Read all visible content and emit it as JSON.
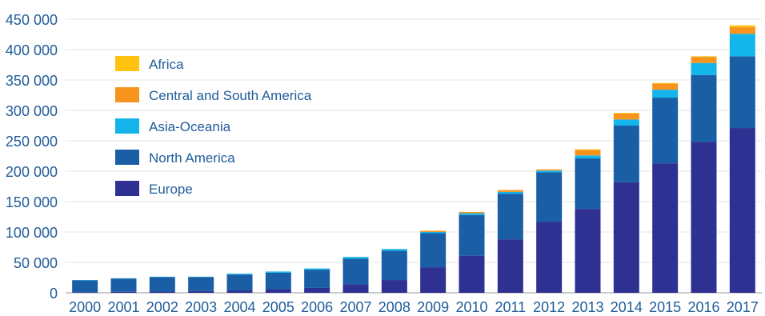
{
  "chart_data": {
    "type": "bar",
    "stacked": true,
    "categories": [
      "2000",
      "2001",
      "2002",
      "2003",
      "2004",
      "2005",
      "2006",
      "2007",
      "2008",
      "2009",
      "2010",
      "2011",
      "2012",
      "2013",
      "2014",
      "2015",
      "2016",
      "2017"
    ],
    "series": [
      {
        "name": "Europe",
        "color": "#2e3192",
        "values": [
          1000,
          1500,
          2000,
          3000,
          4000,
          6000,
          8000,
          14000,
          21000,
          42000,
          61000,
          88000,
          117000,
          138000,
          182000,
          213000,
          248000,
          271000
        ]
      },
      {
        "name": "North America",
        "color": "#1a5fa6",
        "values": [
          19500,
          22000,
          24000,
          23000,
          26000,
          27000,
          30000,
          42000,
          48000,
          56000,
          67000,
          75000,
          81000,
          83000,
          93000,
          108000,
          110000,
          118000
        ]
      },
      {
        "name": "Asia-Oceania",
        "color": "#13b5ea",
        "values": [
          500,
          500,
          500,
          500,
          1500,
          2000,
          2000,
          3000,
          3000,
          2000,
          3000,
          3000,
          3000,
          5000,
          10000,
          13000,
          20000,
          37000
        ]
      },
      {
        "name": "Central and South America",
        "color": "#f7941d",
        "values": [
          0,
          0,
          0,
          0,
          0,
          0,
          0,
          0,
          0,
          2000,
          2000,
          3000,
          2000,
          9000,
          10000,
          10000,
          10000,
          11000
        ]
      },
      {
        "name": "Africa",
        "color": "#ffc20e",
        "values": [
          0,
          0,
          0,
          0,
          0,
          0,
          0,
          0,
          0,
          0,
          0,
          0,
          0,
          1000,
          1000,
          1000,
          1000,
          3000
        ]
      }
    ],
    "legend_order": [
      "Africa",
      "Central and South America",
      "Asia-Oceania",
      "North America",
      "Europe"
    ],
    "ylim": [
      0,
      450000
    ],
    "yticks": [
      0,
      50000,
      100000,
      150000,
      200000,
      250000,
      300000,
      350000,
      400000,
      450000
    ],
    "ytick_labels": [
      "0",
      "50 000",
      "100 000",
      "150 000",
      "200 000",
      "250 000",
      "300 000",
      "350 000",
      "400 000",
      "450 000"
    ],
    "grid": true,
    "legend_position": "top-left",
    "title": "",
    "xlabel": "",
    "ylabel": ""
  }
}
